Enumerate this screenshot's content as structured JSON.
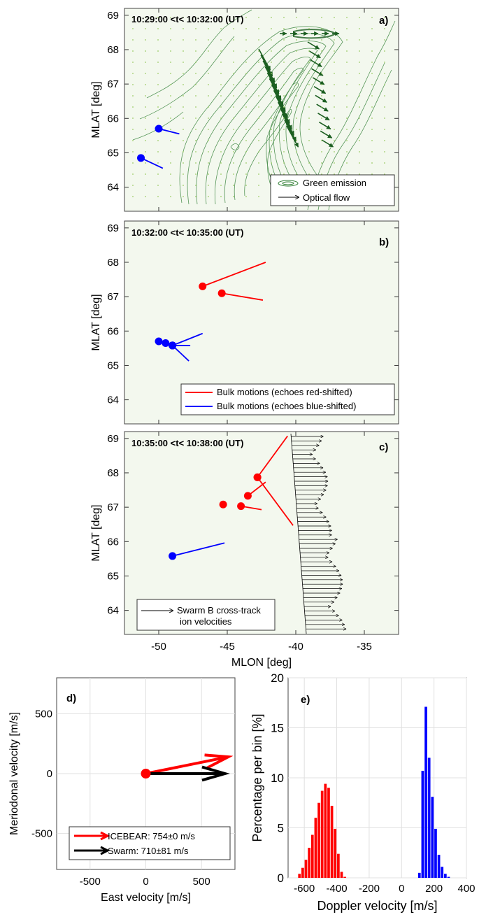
{
  "panel_labels": {
    "a": "a)",
    "b": "b)",
    "c": "c)",
    "d": "d)",
    "e": "e)"
  },
  "time_labels": {
    "a": "10:29:00 <t< 10:32:00 (UT)",
    "b": "10:32:00 <t< 10:35:00 (UT)",
    "c": "10:35:00 <t< 10:38:00 (UT)"
  },
  "legends": {
    "a": [
      "Green emission",
      "Optical flow"
    ],
    "b": [
      "Bulk motions (echoes red-shifted)",
      "Bulk motions (echoes blue-shifted)"
    ],
    "c": [
      "Swarm B cross-track",
      "ion velocities"
    ],
    "d": [
      "ICEBEAR: 754±0 m/s",
      "Swarm: 710±81 m/s"
    ]
  },
  "colors": {
    "red": "#ff0000",
    "blue": "#0000ff",
    "black": "#000000",
    "green_line": "#2e7d32",
    "green_bg": "#f3f8ee"
  },
  "chart_data": [
    {
      "type": "scatter",
      "panel": "a",
      "xlim": [
        -52.5,
        -32.5
      ],
      "ylim": [
        63.3,
        69.2
      ],
      "ylabel": "MLAT [deg]",
      "yticks": [
        64,
        65,
        66,
        67,
        68,
        69
      ],
      "xticks": [
        -50,
        -45,
        -40,
        -35
      ],
      "blue_points": [
        {
          "x": -50.0,
          "y": 65.7,
          "dx": 1.5,
          "dy": -0.15
        },
        {
          "x": -51.3,
          "y": 64.85,
          "dx": 1.6,
          "dy": -0.3
        }
      ]
    },
    {
      "type": "scatter",
      "panel": "b",
      "xlim": [
        -52.5,
        -32.5
      ],
      "ylim": [
        63.3,
        69.2
      ],
      "ylabel": "MLAT [deg]",
      "yticks": [
        64,
        65,
        66,
        67,
        68,
        69
      ],
      "xticks": [
        -50,
        -45,
        -40,
        -35
      ],
      "red_points": [
        {
          "x": -46.8,
          "y": 67.3,
          "dx": 4.6,
          "dy": 0.7
        },
        {
          "x": -45.4,
          "y": 67.1,
          "dx": 3.0,
          "dy": -0.2
        }
      ],
      "blue_points": [
        {
          "x": -50.0,
          "y": 65.7,
          "dx": 0,
          "dy": 0
        },
        {
          "x": -49.5,
          "y": 65.65,
          "dx": 0,
          "dy": 0
        },
        {
          "x": -49.0,
          "y": 65.58,
          "dx": 2.2,
          "dy": 0.35
        },
        {
          "x": -49.0,
          "y": 65.58,
          "dx": 1.3,
          "dy": 0.0
        },
        {
          "x": -49.0,
          "y": 65.58,
          "dx": 1.2,
          "dy": -0.45
        }
      ]
    },
    {
      "type": "scatter",
      "panel": "c",
      "xlim": [
        -52.5,
        -32.5
      ],
      "ylim": [
        63.3,
        69.2
      ],
      "xlabel": "MLON [deg]",
      "ylabel": "MLAT [deg]",
      "yticks": [
        64,
        65,
        66,
        67,
        68,
        69
      ],
      "xticks": [
        -50,
        -45,
        -40,
        -35
      ],
      "xticklabels": [
        "-50",
        "-45",
        "-40",
        "-35"
      ],
      "red_points": [
        {
          "x": -42.8,
          "y": 67.87,
          "dx": 2.2,
          "dy": 1.2
        },
        {
          "x": -42.8,
          "y": 67.87,
          "dx": 2.6,
          "dy": -1.4
        },
        {
          "x": -43.5,
          "y": 67.33,
          "dx": 1.3,
          "dy": 0.4
        },
        {
          "x": -44.0,
          "y": 67.03,
          "dx": 1.5,
          "dy": -0.1
        },
        {
          "x": -45.3,
          "y": 67.08,
          "dx": 0,
          "dy": 0
        }
      ],
      "blue_points": [
        {
          "x": -49.0,
          "y": 65.58,
          "dx": 3.8,
          "dy": 0.38
        }
      ]
    },
    {
      "type": "scatter",
      "panel": "d",
      "xlim": [
        -800,
        800
      ],
      "ylim": [
        -800,
        800
      ],
      "xlabel": "East velocity [m/s]",
      "ylabel": "Meriodonal velocity [m/s]",
      "xticks": [
        -500,
        0,
        500
      ],
      "yticks": [
        -500,
        0,
        500
      ],
      "series": [
        {
          "name": "ICEBEAR: 754±0 m/s",
          "x": 0,
          "y": 0,
          "u": 740,
          "v": 140
        },
        {
          "name": "Swarm: 710±81 m/s",
          "x": 0,
          "y": 0,
          "u": 710,
          "v": 0
        }
      ]
    },
    {
      "type": "bar",
      "panel": "e",
      "xlabel": "Doppler velocity [m/s]",
      "ylabel": "Percentage per bin [%]",
      "xlim": [
        -700,
        400
      ],
      "ylim": [
        0,
        20
      ],
      "xticks": [
        -600,
        -400,
        -200,
        0,
        200,
        400
      ],
      "yticks": [
        0,
        5,
        10,
        15,
        20
      ],
      "bin_width": 20,
      "red_bins": {
        "centers": [
          -630,
          -610,
          -590,
          -570,
          -550,
          -530,
          -510,
          -490,
          -470,
          -450,
          -430,
          -410,
          -390,
          -370,
          -350
        ],
        "values": [
          0.4,
          1.0,
          1.8,
          3.0,
          4.3,
          6.0,
          7.5,
          8.7,
          9.4,
          9.0,
          7.2,
          4.9,
          2.4,
          0.6,
          0.1
        ]
      },
      "blue_bins": {
        "centers": [
          110,
          130,
          150,
          170,
          190,
          210,
          230,
          250,
          270,
          290
        ],
        "values": [
          0.5,
          10.7,
          17.1,
          12.0,
          8.1,
          4.9,
          2.3,
          1.1,
          0.4,
          0.1
        ]
      }
    }
  ]
}
